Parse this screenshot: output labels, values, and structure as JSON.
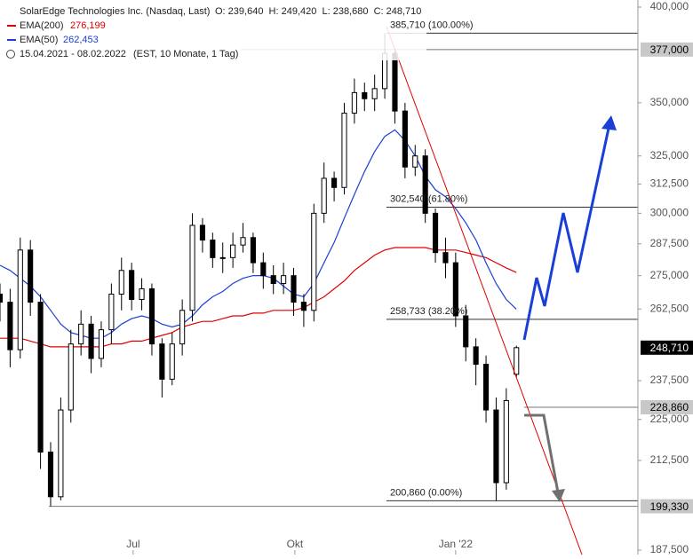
{
  "chart_data": {
    "type": "candlestick",
    "title": "SolarEdge Technologies Inc. (Nasdaq, Last)",
    "ohlc_text": "O: 239,640  H: 249,420  L: 238,680  C: 248,710",
    "period": "15.04.2021 - 08.02.2022",
    "period_note": "(EST, 10 Monate, 1 Tag)",
    "log_scale": true,
    "xlim": [
      0,
      252
    ],
    "xticks": [
      {
        "value": 52.6,
        "label": "Jul"
      },
      {
        "value": 116.5,
        "label": "Okt"
      },
      {
        "value": 180,
        "label": "Jan '22"
      }
    ],
    "ylim": [
      187.5,
      400
    ],
    "yticks": [
      {
        "value": 187.5,
        "label": "187,500"
      },
      {
        "value": 212.5,
        "label": "212,500"
      },
      {
        "value": 225,
        "label": "225,000"
      },
      {
        "value": 237.5,
        "label": "237,500"
      },
      {
        "value": 262.5,
        "label": "262,500"
      },
      {
        "value": 275,
        "label": "275,000"
      },
      {
        "value": 287.5,
        "label": "287,500"
      },
      {
        "value": 300,
        "label": "300,000"
      },
      {
        "value": 312.5,
        "label": "312,500"
      },
      {
        "value": 325,
        "label": "325,000"
      },
      {
        "value": 350,
        "label": "350,000"
      },
      {
        "value": 400,
        "label": "400,000"
      }
    ],
    "x": [
      0,
      4,
      8,
      12,
      16,
      20,
      24,
      28,
      32,
      36,
      40,
      44,
      48,
      52,
      56,
      60,
      64,
      68,
      72,
      76,
      80,
      84,
      88,
      92,
      96,
      100,
      104,
      108,
      112,
      116,
      120,
      124,
      128,
      132,
      136,
      140,
      144,
      148,
      152,
      156,
      160,
      164,
      168,
      172,
      176,
      180,
      184,
      188,
      192,
      196,
      200,
      204
    ],
    "open": [
      268,
      265,
      248,
      285,
      265,
      215,
      202,
      228,
      250,
      257,
      245,
      255,
      268,
      277,
      266,
      270,
      250,
      238,
      250,
      262,
      295,
      289,
      282,
      282,
      287,
      290,
      280,
      275,
      272,
      275,
      265,
      262,
      300,
      315,
      311,
      345,
      355,
      352,
      357,
      375,
      346,
      320,
      325,
      300,
      284,
      280,
      260,
      249,
      243,
      228,
      206,
      239.64
    ],
    "high": [
      272,
      270,
      290,
      289,
      268,
      218,
      232,
      255,
      262,
      260,
      258,
      272,
      282,
      280,
      274,
      272,
      252,
      254,
      266,
      300,
      298,
      292,
      288,
      292,
      296,
      292,
      284,
      279,
      280,
      278,
      268,
      304,
      322,
      318,
      350,
      362,
      360,
      364,
      385.71,
      378,
      350,
      330,
      328,
      302,
      290,
      284,
      264,
      252,
      246,
      232,
      235,
      249.42
    ],
    "low": [
      258,
      242,
      245,
      260,
      210,
      199.33,
      201,
      224,
      246,
      240,
      242,
      250,
      262,
      262,
      262,
      246,
      232,
      236,
      246,
      258,
      284,
      278,
      276,
      278,
      284,
      276,
      270,
      268,
      268,
      260,
      256,
      258,
      296,
      305,
      308,
      340,
      346,
      346,
      352,
      340,
      315,
      316,
      296,
      280,
      274,
      256,
      244,
      236,
      224,
      200.86,
      204,
      238.68
    ],
    "close": [
      265,
      248,
      285,
      265,
      215,
      202,
      228,
      250,
      257,
      245,
      255,
      268,
      277,
      266,
      270,
      250,
      238,
      250,
      262,
      295,
      289,
      282,
      282,
      287,
      290,
      280,
      275,
      272,
      275,
      265,
      262,
      300,
      315,
      311,
      345,
      355,
      352,
      357,
      375,
      346,
      320,
      325,
      300,
      284,
      280,
      260,
      249,
      243,
      228,
      206,
      231,
      248.71
    ],
    "up_color": "#ffffff",
    "down_color": "#000000",
    "series": [
      {
        "name": "EMA(200)",
        "color": "#e00000",
        "value_label": "276,199",
        "values": [
          252,
          252,
          252,
          251,
          250,
          249,
          249,
          249,
          249,
          249,
          249,
          250,
          250,
          251,
          251,
          252,
          253,
          254,
          256,
          257,
          258,
          258,
          259,
          260,
          260,
          261,
          261,
          262,
          262,
          262,
          263,
          265,
          267,
          270,
          273,
          277,
          280,
          283,
          285,
          286,
          286,
          286,
          286,
          285,
          285,
          285,
          284,
          283,
          282,
          280,
          278,
          276.199
        ]
      },
      {
        "name": "EMA(50)",
        "color": "#1a3fd6",
        "value_label": "262,453",
        "values": [
          279,
          277,
          274,
          271,
          267,
          262,
          257,
          254,
          253,
          252,
          252,
          254,
          257,
          259,
          260,
          259,
          257,
          256,
          257,
          260,
          264,
          267,
          269,
          272,
          274,
          275,
          275,
          274,
          271,
          268,
          267,
          272,
          280,
          288,
          298,
          308,
          318,
          327,
          334,
          337,
          332,
          325,
          316,
          310,
          307,
          302,
          296,
          289,
          280,
          272,
          266,
          262.453
        ]
      }
    ],
    "price_lines": [
      {
        "value": 377,
        "label": "377,000",
        "from": 95
      },
      {
        "value": 248.71,
        "label": "248,710",
        "current": true
      },
      {
        "value": 228.86,
        "label": "228,860",
        "from": 207
      },
      {
        "value": 199.33,
        "label": "199,330",
        "from": 19.3
      }
    ],
    "fib_levels": [
      {
        "value": 385.71,
        "label": "385,710 (100.00%)"
      },
      {
        "value": 302.54,
        "label": "302,540 (61.80%)"
      },
      {
        "value": 258.733,
        "label": "258,733 (38.20%)"
      },
      {
        "value": 200.86,
        "label": "200,860 (0.00%)"
      }
    ]
  }
}
